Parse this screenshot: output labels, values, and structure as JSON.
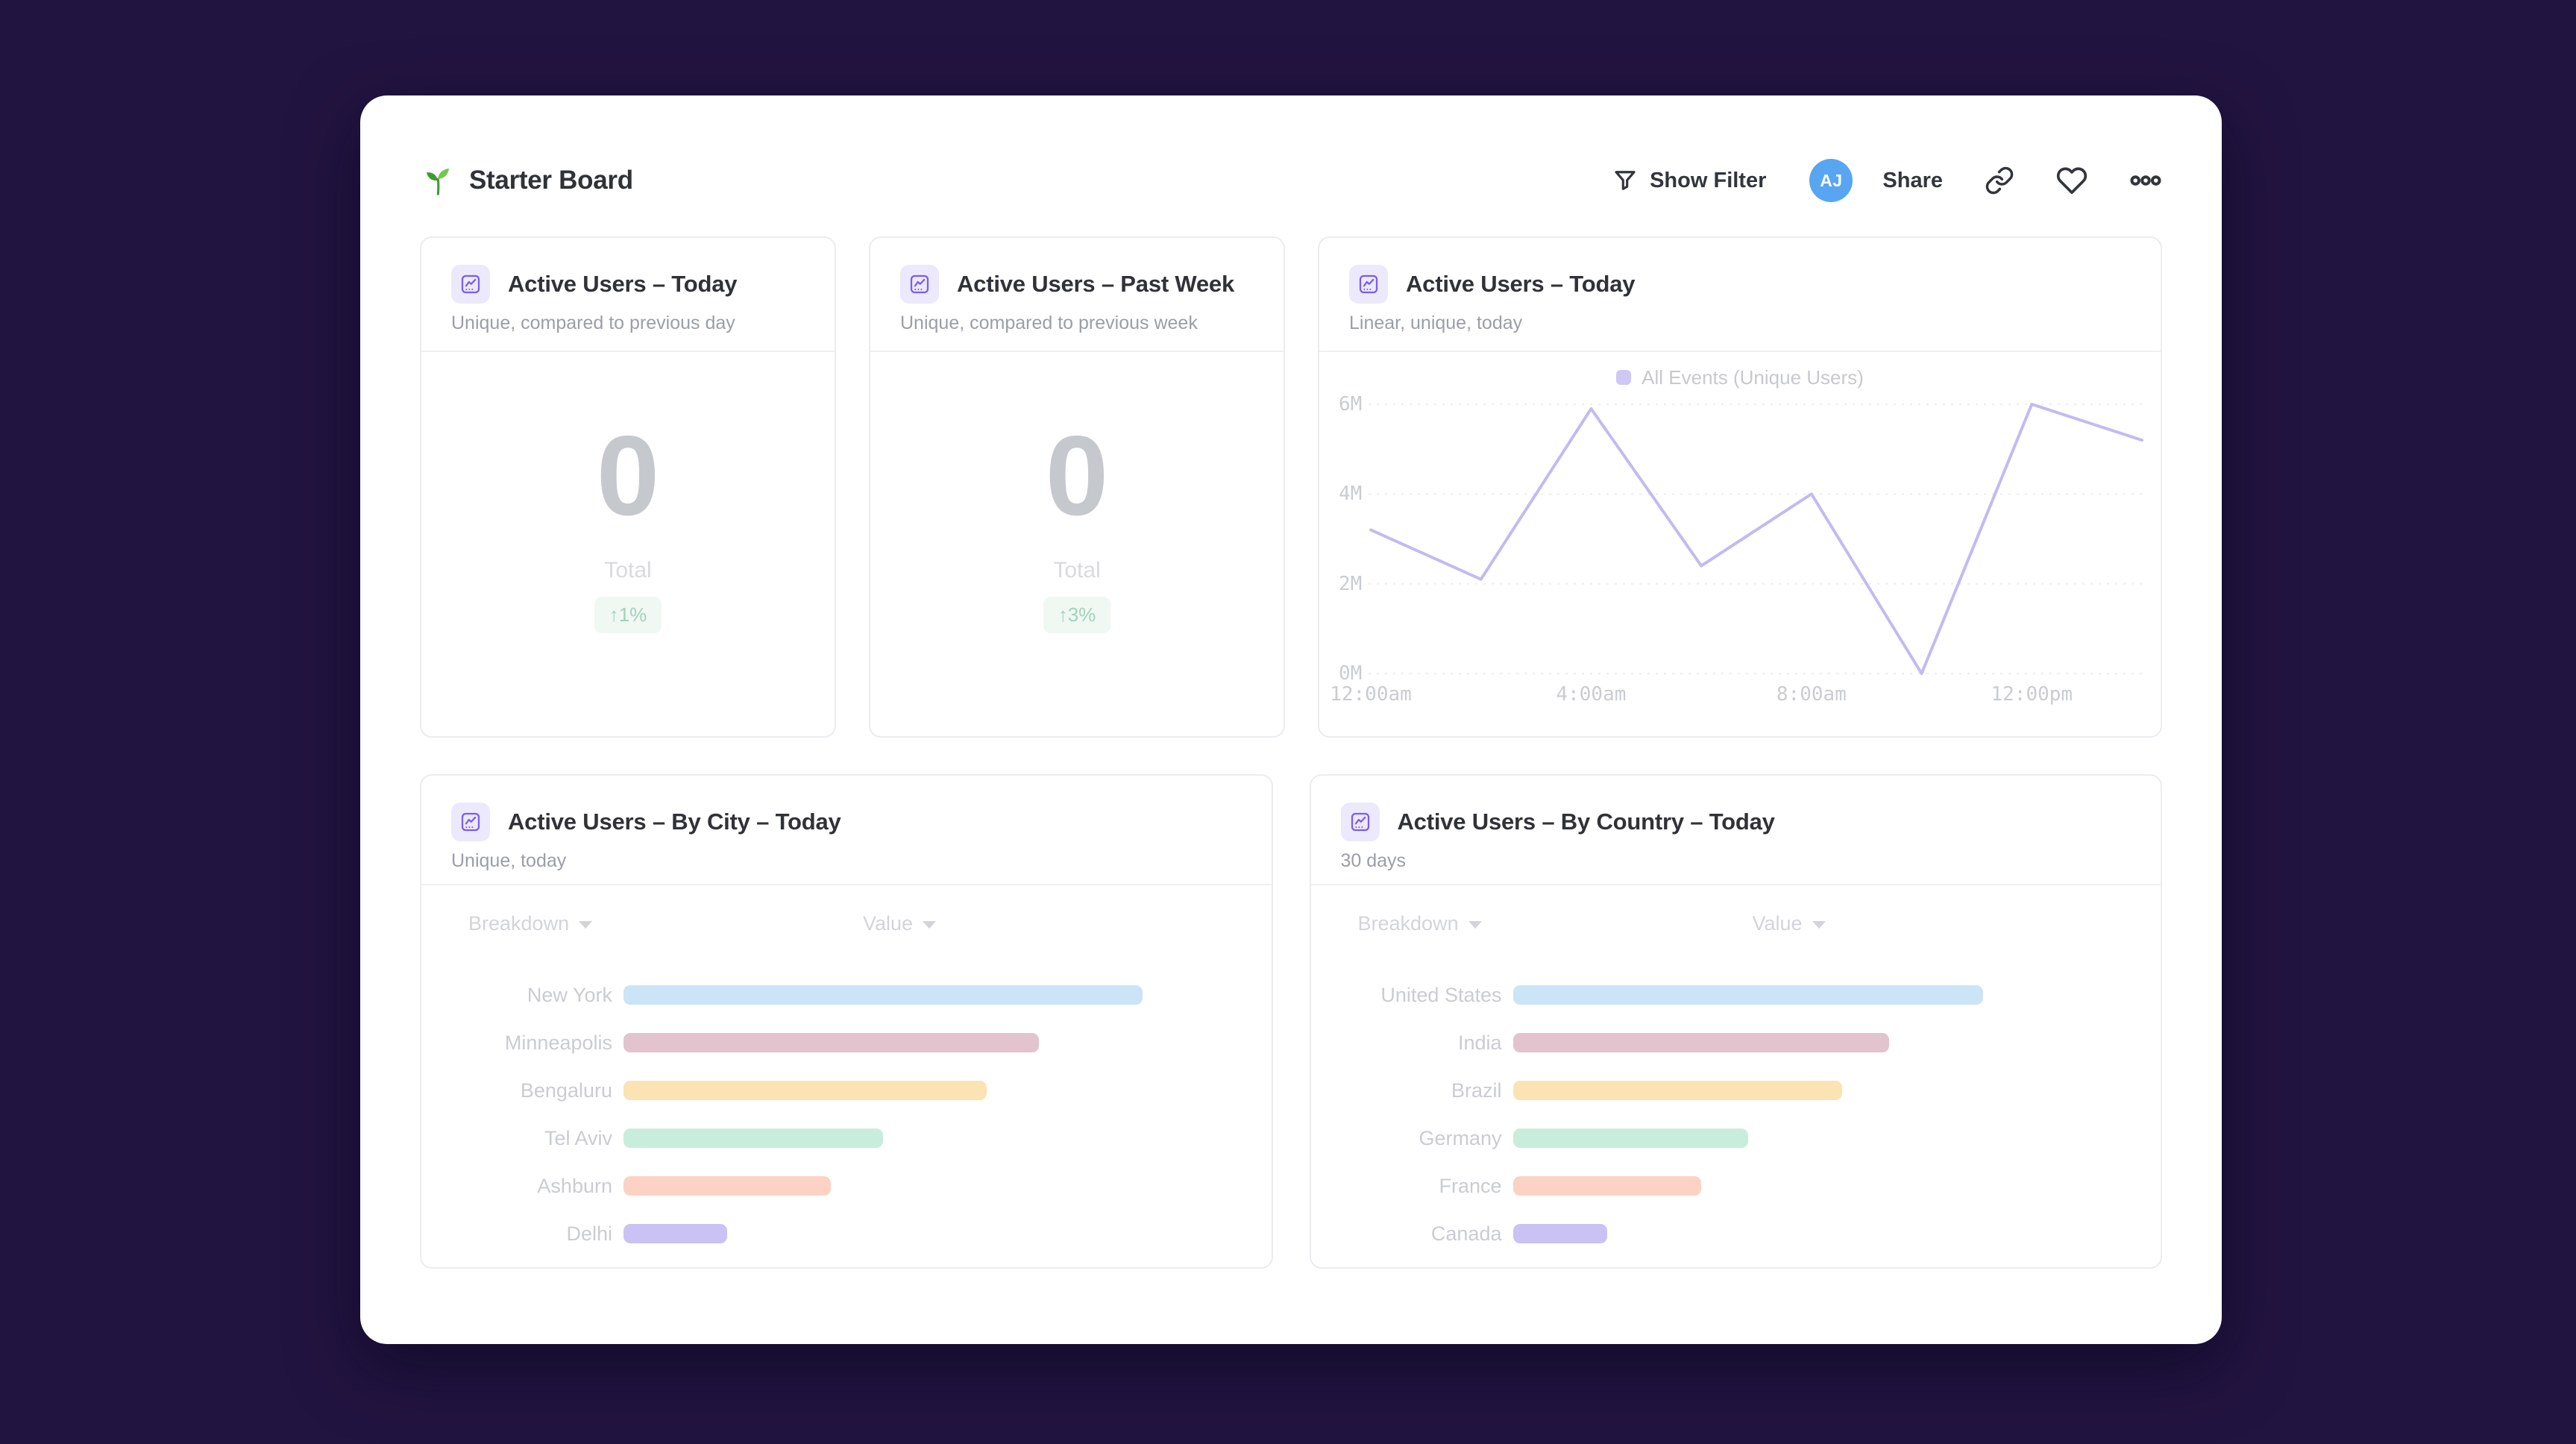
{
  "app": {
    "background_color": "#221440",
    "accent_purple": "#7c5cf0",
    "avatar_color": "#58a6f1"
  },
  "header": {
    "logo_icon": "seedling-icon",
    "title": "Starter Board",
    "show_filter_label": "Show Filter",
    "avatar_initials": "AJ",
    "share_label": "Share"
  },
  "metric_cards": [
    {
      "title": "Active Users – Today",
      "subtitle": "Unique, compared to previous day",
      "value": "0",
      "value_label": "Total",
      "delta": "↑1%",
      "delta_color": "#a3d2b9"
    },
    {
      "title": "Active Users – Past Week",
      "subtitle": "Unique, compared to previous week",
      "value": "0",
      "value_label": "Total",
      "delta": "↑3%",
      "delta_color": "#a3d2b9"
    }
  ],
  "line_card": {
    "title": "Active Users – Today",
    "subtitle": "Linear, unique, today",
    "legend_label": "All Events (Unique Users)"
  },
  "city_card": {
    "title": "Active Users – By City – Today",
    "subtitle": "Unique, today",
    "breakdown_header": "Breakdown",
    "value_header": "Value"
  },
  "country_card": {
    "title": "Active Users – By Country – Today",
    "subtitle": "30 days",
    "breakdown_header": "Breakdown",
    "value_header": "Value"
  },
  "chart_data": [
    {
      "name": "active-users-today-line",
      "type": "line",
      "title": "Active Users – Today",
      "series": [
        {
          "name": "All Events (Unique Users)",
          "values_millions": [
            3.2,
            2.1,
            5.9,
            2.4,
            4.0,
            0.0,
            6.0,
            5.2
          ]
        }
      ],
      "x": [
        "12:00am",
        "2:00am",
        "4:00am",
        "6:00am",
        "8:00am",
        "10:00am",
        "12:00pm",
        "2:00pm"
      ],
      "x_tick_labels": [
        "12:00am",
        "4:00am",
        "8:00am",
        "12:00pm"
      ],
      "y_tick_labels": [
        "0M",
        "2M",
        "4M",
        "6M"
      ],
      "ylim_millions": [
        0,
        6
      ],
      "grid": "horizontal-dashed",
      "legend_position": "top-center",
      "line_color": "#c4baf1",
      "legend_swatch_color": "#cfc8f5"
    },
    {
      "name": "active-users-by-city",
      "type": "bar",
      "orientation": "horizontal",
      "title": "Active Users – By City – Today",
      "categories": [
        "New York",
        "Minneapolis",
        "Bengaluru",
        "Tel Aviv",
        "Ashburn",
        "Delhi"
      ],
      "values_relative_pct": [
        100,
        80,
        70,
        50,
        40,
        20
      ],
      "bar_colors": [
        "#cbe4f6",
        "#e2c3ce",
        "#fbe3b4",
        "#c9eddd",
        "#fcd2c5",
        "#cbc2f4"
      ]
    },
    {
      "name": "active-users-by-country",
      "type": "bar",
      "orientation": "horizontal",
      "title": "Active Users – By Country – Today",
      "categories": [
        "United States",
        "India",
        "Brazil",
        "Germany",
        "France",
        "Canada"
      ],
      "values_relative_pct": [
        100,
        80,
        70,
        50,
        40,
        20
      ],
      "bar_colors": [
        "#cbe4f6",
        "#e2c3ce",
        "#fbe3b4",
        "#c9eddd",
        "#fcd2c5",
        "#cbc2f4"
      ]
    }
  ]
}
